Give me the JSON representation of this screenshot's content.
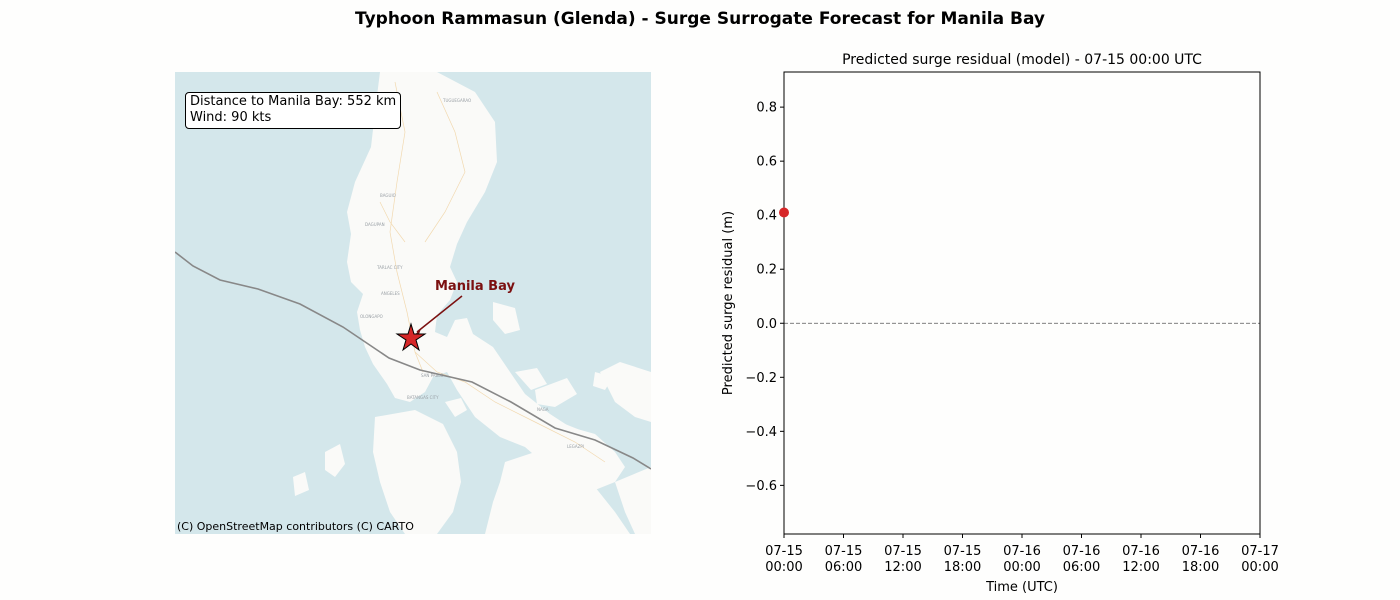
{
  "figure": {
    "title": "Typhoon Rammasun (Glenda) - Surge Surrogate Forecast for Manila Bay"
  },
  "map": {
    "info_lines": [
      "Distance to Manila Bay: 552 km",
      "Wind: 90 kts"
    ],
    "marker_label": "Manila Bay",
    "attribution": "(C) OpenStreetMap contributors (C) CARTO",
    "colors": {
      "sea": "#d4e7eb",
      "land": "#fafaf8",
      "track": "#888888",
      "marker": "#d62728",
      "label": "#7b1010"
    },
    "place_labels": [
      "TUGUEGARAO",
      "BAGUIO",
      "DAGUPAN",
      "TARLAC CITY",
      "ANGELES",
      "OLONGAPO",
      "SAN PABLO",
      "BATANGAS CITY",
      "NAGA",
      "LEGAZPI"
    ]
  },
  "chart_data": {
    "type": "scatter",
    "title": "Predicted surge residual (model) - 07-15 00:00 UTC",
    "xlabel": "Time (UTC)",
    "ylabel": "Predicted surge residual (m)",
    "x_ticks": [
      "07-15\n00:00",
      "07-15\n06:00",
      "07-15\n12:00",
      "07-15\n18:00",
      "07-16\n00:00",
      "07-16\n06:00",
      "07-16\n12:00",
      "07-16\n18:00",
      "07-17\n00:00"
    ],
    "xlim": [
      "07-15 00:00",
      "07-17 00:00"
    ],
    "ylim": [
      -0.78,
      0.93
    ],
    "y_ticks": [
      -0.6,
      -0.4,
      -0.2,
      0.0,
      0.2,
      0.4,
      0.6,
      0.8
    ],
    "y_tick_labels": [
      "−0.6",
      "−0.4",
      "−0.2",
      "0.0",
      "0.2",
      "0.4",
      "0.6",
      "0.8"
    ],
    "reference_line": 0.0,
    "points": [
      {
        "x": "07-15 00:00",
        "x_hours": 0,
        "y": 0.41
      }
    ],
    "point_color": "#d62728",
    "grid": false
  }
}
